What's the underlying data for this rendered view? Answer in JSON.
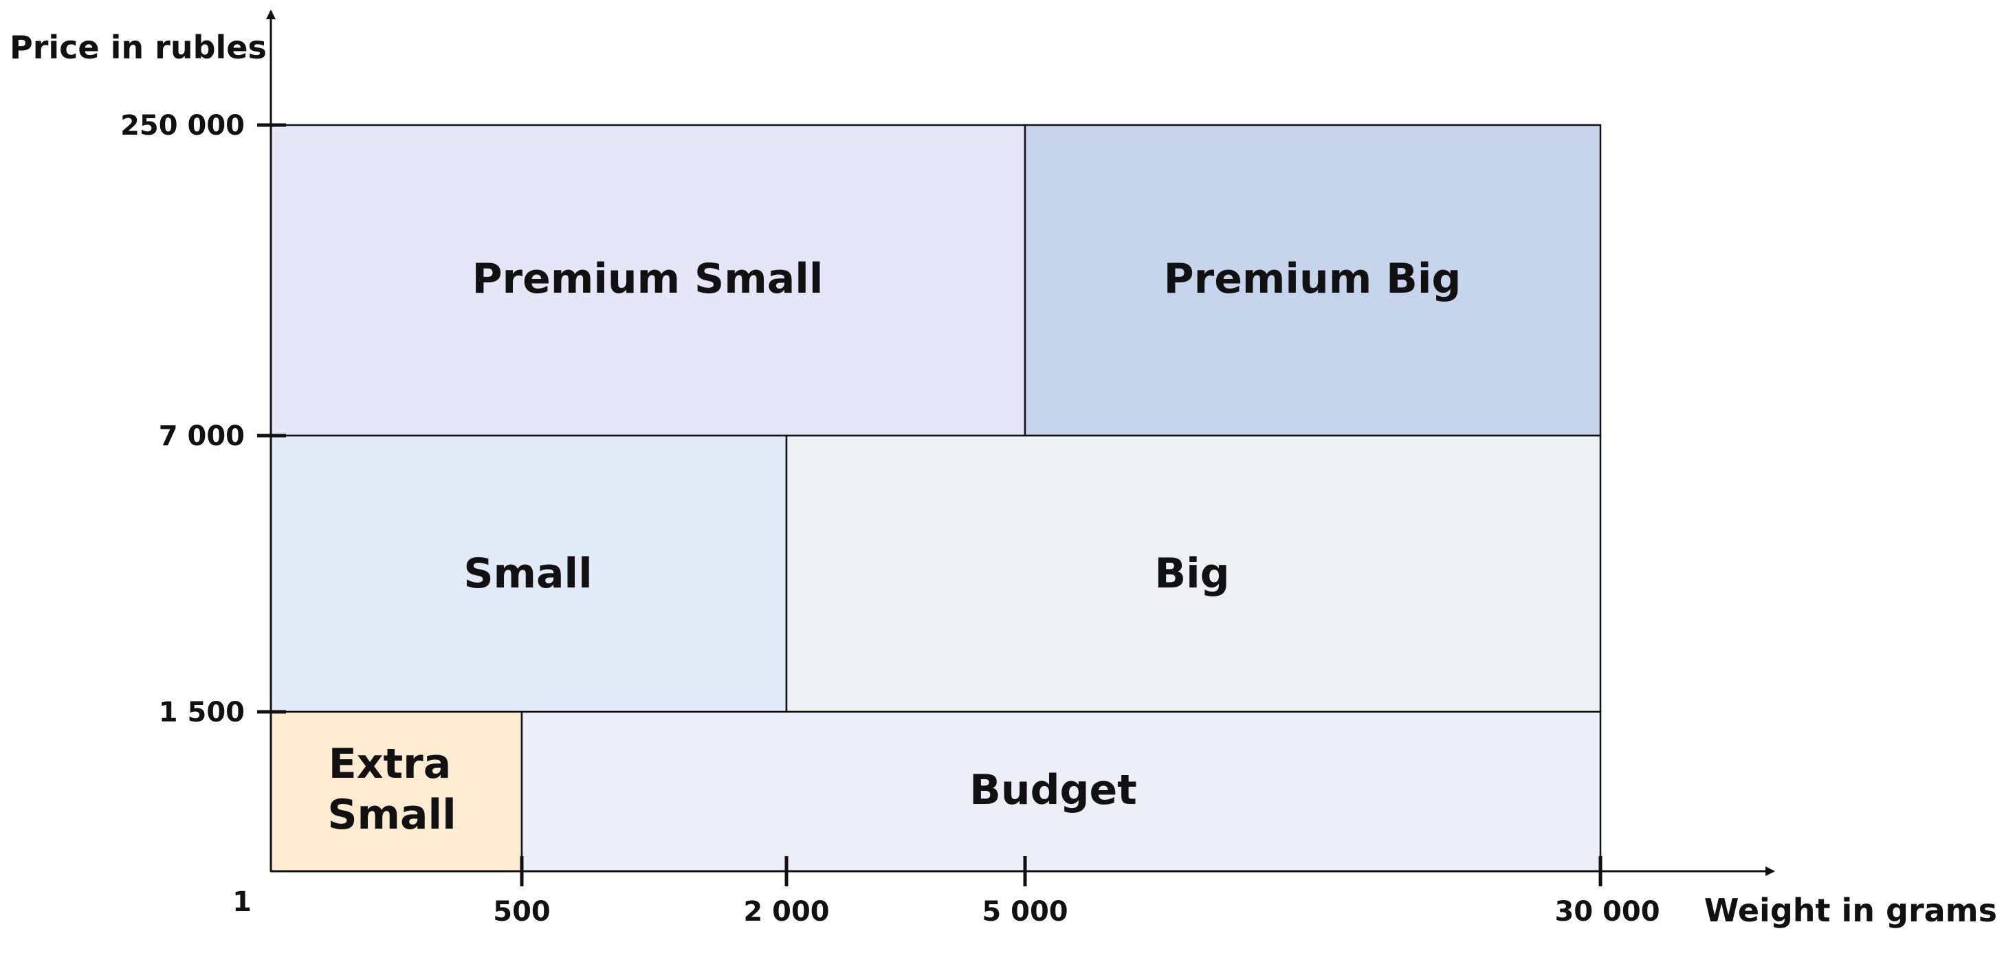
{
  "axes": {
    "y_label": "Price in rubles",
    "x_label": "Weight in grams",
    "origin_label": "1",
    "y_ticks": [
      "250 000",
      "7 000",
      "1 500"
    ],
    "x_ticks": [
      "500",
      "2 000",
      "5 000",
      "30 000"
    ]
  },
  "regions": {
    "premium_small": {
      "label": "Premium Small",
      "color": "#e5e6f7"
    },
    "premium_big": {
      "label": "Premium Big",
      "color": "#c7d5ec"
    },
    "small": {
      "label": "Small",
      "color": "#e0ebf7"
    },
    "big": {
      "label": "Big",
      "color": "#eef1f4"
    },
    "extra_small": {
      "label_line1": "Extra",
      "label_line2": "Small",
      "color": "#fdecd2"
    },
    "budget": {
      "label": "Budget",
      "color": "#eceff7"
    }
  }
}
